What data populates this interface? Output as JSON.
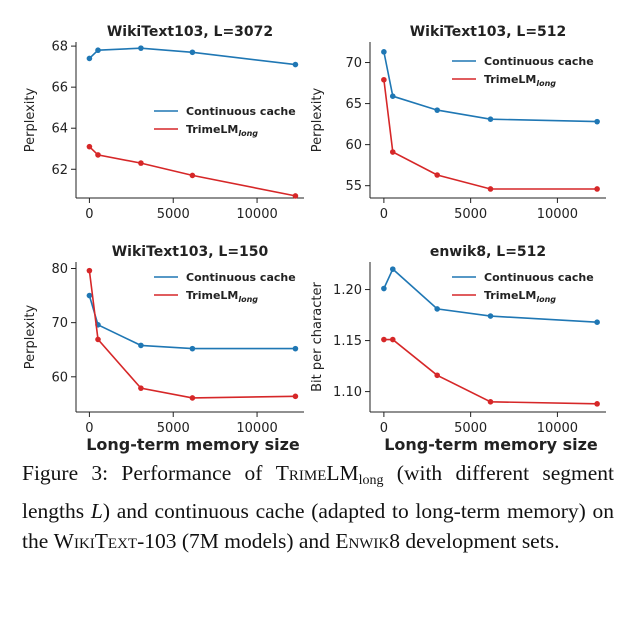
{
  "colors": {
    "cache": "#1f77b4",
    "trime": "#d62728"
  },
  "chart_data": [
    {
      "type": "line",
      "title": "WikiText103, L=3072",
      "xlabel": "",
      "ylabel": "Perplexity",
      "xlim": [
        -800,
        12800
      ],
      "ylim": [
        60.6,
        68.2
      ],
      "xticks": [
        0,
        5000,
        10000
      ],
      "xtick_labels": [
        "0",
        "5000",
        "10000"
      ],
      "yticks": [
        62,
        64,
        66,
        68
      ],
      "ytick_labels": [
        "62",
        "64",
        "66",
        "68"
      ],
      "legend_position": "center-right",
      "series": [
        {
          "name": "Continuous cache",
          "color": "#1f77b4",
          "x": [
            0,
            512,
            3072,
            6144,
            12288
          ],
          "y": [
            67.4,
            67.8,
            67.9,
            67.7,
            67.1
          ]
        },
        {
          "name": "TrimeLM",
          "name_sub": "long",
          "color": "#d62728",
          "x": [
            0,
            512,
            3072,
            6144,
            12288
          ],
          "y": [
            63.1,
            62.7,
            62.3,
            61.7,
            60.7
          ]
        }
      ]
    },
    {
      "type": "line",
      "title": "WikiText103, L=512",
      "xlabel": "",
      "ylabel": "Perplexity",
      "xlim": [
        -800,
        12800
      ],
      "ylim": [
        53.5,
        72.5
      ],
      "xticks": [
        0,
        5000,
        10000
      ],
      "xtick_labels": [
        "0",
        "5000",
        "10000"
      ],
      "yticks": [
        55,
        60,
        65,
        70
      ],
      "ytick_labels": [
        "55",
        "60",
        "65",
        "70"
      ],
      "legend_position": "top-right",
      "series": [
        {
          "name": "Continuous cache",
          "color": "#1f77b4",
          "x": [
            0,
            512,
            3072,
            6144,
            12288
          ],
          "y": [
            71.3,
            65.9,
            64.2,
            63.1,
            62.8
          ]
        },
        {
          "name": "TrimeLM",
          "name_sub": "long",
          "color": "#d62728",
          "x": [
            0,
            512,
            3072,
            6144,
            12288
          ],
          "y": [
            67.9,
            59.1,
            56.3,
            54.6,
            54.6
          ]
        }
      ]
    },
    {
      "type": "line",
      "title": "WikiText103, L=150",
      "xlabel": "Long-term memory size",
      "ylabel": "Perplexity",
      "xlim": [
        -800,
        12800
      ],
      "ylim": [
        53.5,
        81.2
      ],
      "xticks": [
        0,
        5000,
        10000
      ],
      "xtick_labels": [
        "0",
        "5000",
        "10000"
      ],
      "yticks": [
        60,
        70,
        80
      ],
      "ytick_labels": [
        "60",
        "70",
        "80"
      ],
      "legend_position": "top-right",
      "series": [
        {
          "name": "Continuous cache",
          "color": "#1f77b4",
          "x": [
            0,
            512,
            3072,
            6144,
            12288
          ],
          "y": [
            75.0,
            69.6,
            65.8,
            65.2,
            65.2
          ]
        },
        {
          "name": "TrimeLM",
          "name_sub": "long",
          "color": "#d62728",
          "x": [
            0,
            512,
            3072,
            6144,
            12288
          ],
          "y": [
            79.6,
            66.9,
            57.9,
            56.1,
            56.4
          ]
        }
      ]
    },
    {
      "type": "line",
      "title": "enwik8, L=512",
      "xlabel": "Long-term memory size",
      "ylabel": "Bit per character",
      "xlim": [
        -800,
        12800
      ],
      "ylim": [
        1.08,
        1.227
      ],
      "xticks": [
        0,
        5000,
        10000
      ],
      "xtick_labels": [
        "0",
        "5000",
        "10000"
      ],
      "yticks": [
        1.1,
        1.15,
        1.2
      ],
      "ytick_labels": [
        "1.10",
        "1.15",
        "1.20"
      ],
      "legend_position": "top-right",
      "series": [
        {
          "name": "Continuous cache",
          "color": "#1f77b4",
          "x": [
            0,
            512,
            3072,
            6144,
            12288
          ],
          "y": [
            1.201,
            1.22,
            1.181,
            1.174,
            1.168
          ]
        },
        {
          "name": "TrimeLM",
          "name_sub": "long",
          "color": "#d62728",
          "x": [
            0,
            512,
            3072,
            6144,
            12288
          ],
          "y": [
            1.151,
            1.151,
            1.116,
            1.09,
            1.088
          ]
        }
      ]
    }
  ],
  "caption": {
    "lead": "Figure 3: Performance of ",
    "model_sc": "TrimeLM",
    "model_sub": "long",
    "mid1": " (with different segment lengths ",
    "var": "L",
    "mid2": ") and continuous cache (adapted to long-term memory) on the ",
    "ds1": "WikiText",
    "ds1_suffix": "-103 (7M models) and ",
    "ds2": "Enwik8",
    "tail": " development sets."
  }
}
